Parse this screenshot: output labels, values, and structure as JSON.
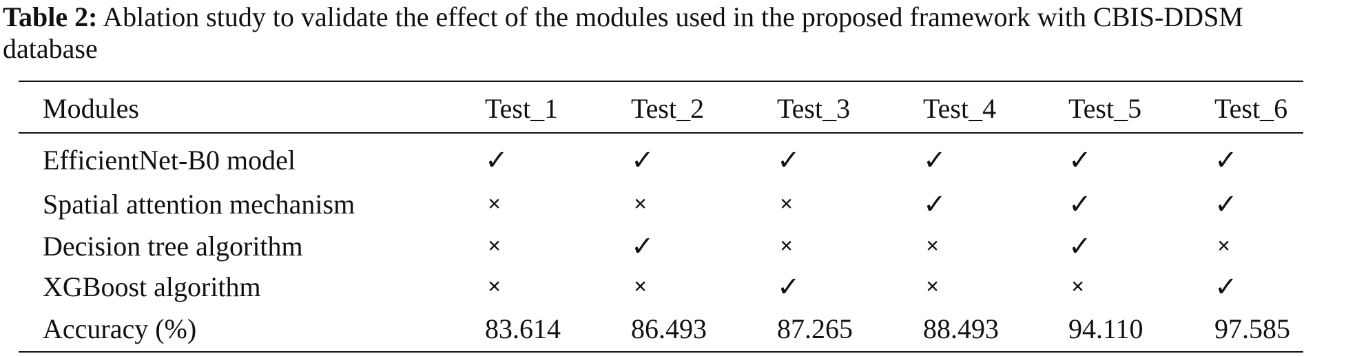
{
  "caption": {
    "label": "Table 2:",
    "text": "Ablation study to validate the effect of the modules used in the proposed framework with CBIS-DDSM database"
  },
  "table": {
    "header": [
      "Modules",
      "Test_1",
      "Test_2",
      "Test_3",
      "Test_4",
      "Test_5",
      "Test_6"
    ],
    "rows": [
      [
        "EfficientNet-B0 model",
        "✓",
        "✓",
        "✓",
        "✓",
        "✓",
        "✓"
      ],
      [
        "Spatial attention mechanism",
        "×",
        "×",
        "×",
        "✓",
        "✓",
        "✓"
      ],
      [
        "Decision tree algorithm",
        "×",
        "✓",
        "×",
        "×",
        "✓",
        "×"
      ],
      [
        "XGBoost algorithm",
        "×",
        "×",
        "✓",
        "×",
        "×",
        "✓"
      ],
      [
        "Accuracy (%)",
        "83.614",
        "86.493",
        "87.265",
        "88.493",
        "94.110",
        "97.585"
      ]
    ]
  }
}
